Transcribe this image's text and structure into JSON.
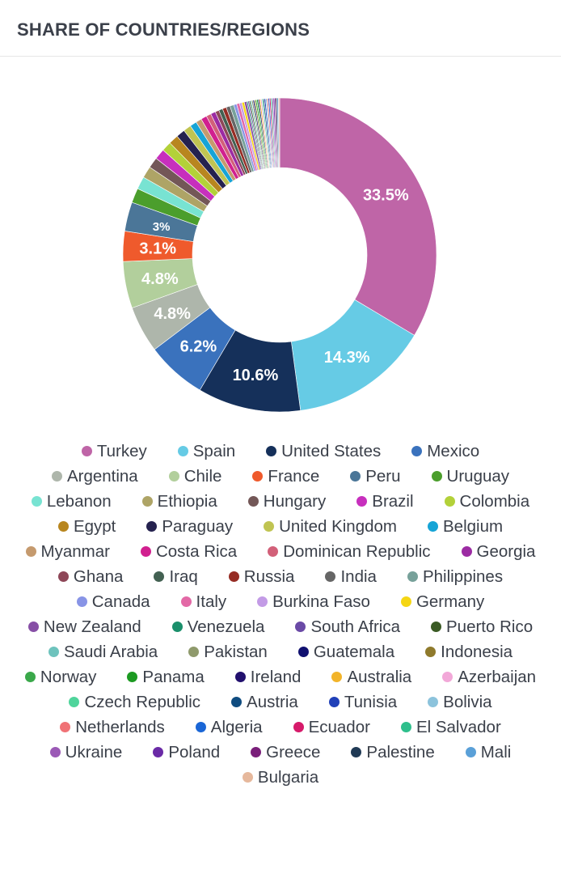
{
  "header": {
    "title": "SHARE OF COUNTRIES/REGIONS"
  },
  "chart_data": {
    "type": "pie",
    "variant": "donut",
    "title": "SHARE OF COUNTRIES/REGIONS",
    "legend_position": "bottom",
    "slices": [
      {
        "label": "Turkey",
        "value": 33.5,
        "color": "#bf65a7",
        "data_label": "33.5%"
      },
      {
        "label": "Spain",
        "value": 14.3,
        "color": "#66cbe5",
        "data_label": "14.3%"
      },
      {
        "label": "United States",
        "value": 10.6,
        "color": "#15305a",
        "data_label": "10.6%"
      },
      {
        "label": "Mexico",
        "value": 6.2,
        "color": "#3a72bd",
        "data_label": "6.2%"
      },
      {
        "label": "Argentina",
        "value": 4.8,
        "color": "#aeb6ab",
        "data_label": "4.8%"
      },
      {
        "label": "Chile",
        "value": 4.8,
        "color": "#b2cf9c",
        "data_label": "4.8%"
      },
      {
        "label": "France",
        "value": 3.1,
        "color": "#ef5a2c",
        "data_label": "3.1%"
      },
      {
        "label": "Peru",
        "value": 3.0,
        "color": "#4b7698",
        "data_label": "3%"
      },
      {
        "label": "Uruguay",
        "value": 1.5,
        "color": "#4b9e2c"
      },
      {
        "label": "Lebanon",
        "value": 1.3,
        "color": "#78e3d2"
      },
      {
        "label": "Ethiopia",
        "value": 1.2,
        "color": "#aea466"
      },
      {
        "label": "Hungary",
        "value": 1.1,
        "color": "#735757"
      },
      {
        "label": "Brazil",
        "value": 1.1,
        "color": "#c72fbd"
      },
      {
        "label": "Colombia",
        "value": 1.0,
        "color": "#b3d139"
      },
      {
        "label": "Egypt",
        "value": 1.0,
        "color": "#b8861f"
      },
      {
        "label": "Paraguay",
        "value": 0.9,
        "color": "#25224f"
      },
      {
        "label": "United Kingdom",
        "value": 0.8,
        "color": "#c0c452"
      },
      {
        "label": "Belgium",
        "value": 0.7,
        "color": "#16a4d6"
      },
      {
        "label": "Myanmar",
        "value": 0.6,
        "color": "#c59a6e"
      },
      {
        "label": "Costa Rica",
        "value": 0.6,
        "color": "#d1208f"
      },
      {
        "label": "Dominican Republic",
        "value": 0.5,
        "color": "#d26079"
      },
      {
        "label": "Georgia",
        "value": 0.5,
        "color": "#9c2ba3"
      },
      {
        "label": "Ghana",
        "value": 0.4,
        "color": "#8e4758"
      },
      {
        "label": "Iraq",
        "value": 0.4,
        "color": "#436152"
      },
      {
        "label": "Russia",
        "value": 0.4,
        "color": "#962c24"
      },
      {
        "label": "India",
        "value": 0.4,
        "color": "#666666"
      },
      {
        "label": "Philippines",
        "value": 0.4,
        "color": "#77a19a"
      },
      {
        "label": "Canada",
        "value": 0.3,
        "color": "#8894e6"
      },
      {
        "label": "Italy",
        "value": 0.3,
        "color": "#e369a6"
      },
      {
        "label": "Burkina Faso",
        "value": 0.25,
        "color": "#c39be6"
      },
      {
        "label": "Germany",
        "value": 0.25,
        "color": "#f5d614"
      },
      {
        "label": "New Zealand",
        "value": 0.25,
        "color": "#874fa6"
      },
      {
        "label": "Venezuela",
        "value": 0.13,
        "color": "#1a8f6b"
      },
      {
        "label": "South Africa",
        "value": 0.13,
        "color": "#6a4aa6"
      },
      {
        "label": "Puerto Rico",
        "value": 0.13,
        "color": "#3a5a24"
      },
      {
        "label": "Saudi Arabia",
        "value": 0.13,
        "color": "#6ec3bd"
      },
      {
        "label": "Pakistan",
        "value": 0.13,
        "color": "#8f9a6c"
      },
      {
        "label": "Guatemala",
        "value": 0.13,
        "color": "#101070"
      },
      {
        "label": "Indonesia",
        "value": 0.13,
        "color": "#8f7a2c"
      },
      {
        "label": "Norway",
        "value": 0.13,
        "color": "#3aa84a"
      },
      {
        "label": "Panama",
        "value": 0.13,
        "color": "#1c9a22"
      },
      {
        "label": "Ireland",
        "value": 0.13,
        "color": "#22106e"
      },
      {
        "label": "Australia",
        "value": 0.13,
        "color": "#f2b42a"
      },
      {
        "label": "Azerbaijan",
        "value": 0.13,
        "color": "#f2a8d8"
      },
      {
        "label": "Czech Republic",
        "value": 0.13,
        "color": "#4fd49b"
      },
      {
        "label": "Austria",
        "value": 0.13,
        "color": "#0f4c80"
      },
      {
        "label": "Tunisia",
        "value": 0.13,
        "color": "#2040b8"
      },
      {
        "label": "Bolivia",
        "value": 0.13,
        "color": "#8cc3dc"
      },
      {
        "label": "Netherlands",
        "value": 0.13,
        "color": "#f07276"
      },
      {
        "label": "Algeria",
        "value": 0.13,
        "color": "#1a66d6"
      },
      {
        "label": "Ecuador",
        "value": 0.13,
        "color": "#d61a6a"
      },
      {
        "label": "El Salvador",
        "value": 0.13,
        "color": "#2ebf8c"
      },
      {
        "label": "Ukraine",
        "value": 0.13,
        "color": "#9b59b6"
      },
      {
        "label": "Poland",
        "value": 0.13,
        "color": "#6a2aa6"
      },
      {
        "label": "Greece",
        "value": 0.13,
        "color": "#7a1f7a"
      },
      {
        "label": "Palestine",
        "value": 0.13,
        "color": "#203a55"
      },
      {
        "label": "Mali",
        "value": 0.13,
        "color": "#5aa0d8"
      },
      {
        "label": "Bulgaria",
        "value": 0.13,
        "color": "#e6b89c"
      }
    ]
  }
}
